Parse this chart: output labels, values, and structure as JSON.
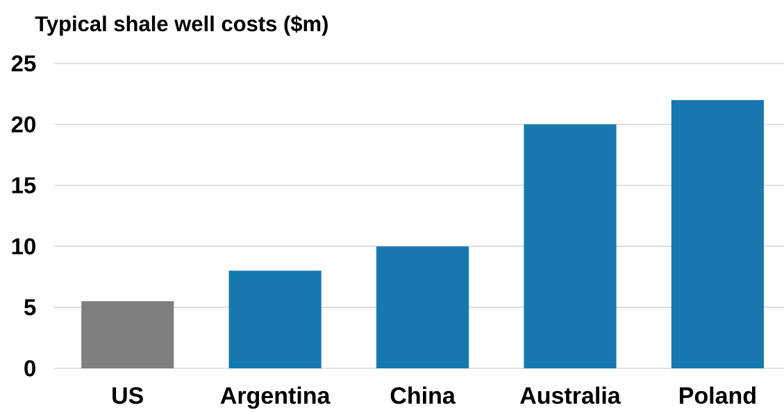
{
  "chart_data": {
    "type": "bar",
    "title": "Typical shale well costs ($m)",
    "categories": [
      "US",
      "Argentina",
      "China",
      "Australia",
      "Poland"
    ],
    "values": [
      5.5,
      8,
      10,
      20,
      22
    ],
    "colors": [
      "#7f7f7f",
      "#1778b0",
      "#1778b0",
      "#1778b0",
      "#1778b0"
    ],
    "ylim": [
      0,
      25
    ],
    "yticks": [
      0,
      5,
      10,
      15,
      20,
      25
    ],
    "grid": "y"
  }
}
